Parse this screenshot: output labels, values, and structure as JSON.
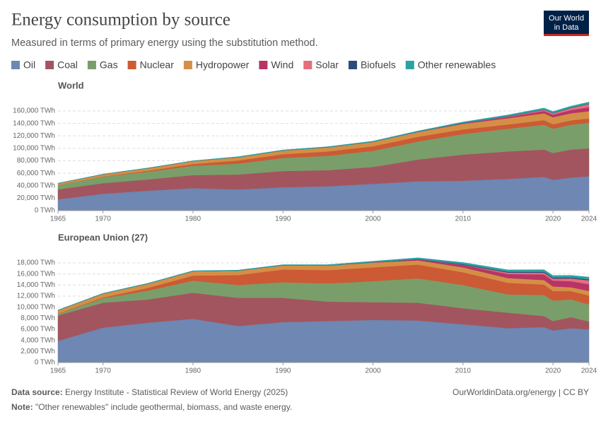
{
  "header": {
    "title": "Energy consumption by source",
    "subtitle": "Measured in terms of primary energy using the substitution method.",
    "logo": [
      "Our World",
      "in Data"
    ]
  },
  "footer": {
    "source_label": "Data source:",
    "source": "Energy Institute - Statistical Review of World Energy (2025)",
    "url": "OurWorldinData.org/energy | CC BY",
    "note_label": "Note:",
    "note": "\"Other renewables\" include geothermal, biomass, and waste energy."
  },
  "chart_data": [
    {
      "type": "stacked-area",
      "title": "World",
      "x": [
        1965,
        1970,
        1975,
        1980,
        1985,
        1990,
        1995,
        2000,
        2005,
        2010,
        2015,
        2019,
        2020,
        2022,
        2024
      ],
      "xlim": [
        1965,
        2024
      ],
      "xticks": [
        1965,
        1970,
        1980,
        1990,
        2000,
        2010,
        2020,
        2024
      ],
      "ylim": [
        0,
        175000
      ],
      "yticks": [
        {
          "value": 0,
          "label": "0 TWh"
        },
        {
          "value": 20000,
          "label": "20,000 TWh"
        },
        {
          "value": 40000,
          "label": "40,000 TWh"
        },
        {
          "value": 60000,
          "label": "60,000 TWh"
        },
        {
          "value": 80000,
          "label": "80,000 TWh"
        },
        {
          "value": 100000,
          "label": "100,000 TWh"
        },
        {
          "value": 120000,
          "label": "120,000 TWh"
        },
        {
          "value": 140000,
          "label": "140,000 TWh"
        },
        {
          "value": 160000,
          "label": "160,000 TWh"
        }
      ],
      "grid": true,
      "series": [
        {
          "name": "Oil",
          "color": "#6e87b3",
          "values": [
            18000,
            27000,
            32000,
            36000,
            34000,
            37500,
            39000,
            43000,
            47000,
            48000,
            51000,
            54000,
            49500,
            53000,
            55000
          ]
        },
        {
          "name": "Coal",
          "color": "#a2555f",
          "values": [
            16000,
            17000,
            18000,
            21000,
            24000,
            26000,
            26000,
            27000,
            35000,
            42000,
            44000,
            44000,
            43000,
            45000,
            45000
          ]
        },
        {
          "name": "Gas",
          "color": "#7a9e6a",
          "values": [
            7000,
            10500,
            12500,
            15000,
            17500,
            21000,
            23000,
            26000,
            29000,
            33000,
            36500,
            40000,
            39000,
            40000,
            41000
          ]
        },
        {
          "name": "Nuclear",
          "color": "#cc5a34",
          "values": [
            100,
            300,
            1500,
            2800,
            5000,
            6100,
            7000,
            7300,
            7600,
            7400,
            6800,
            7300,
            7000,
            6900,
            7100
          ]
        },
        {
          "name": "Hydropower",
          "color": "#d48f46",
          "values": [
            2700,
            3400,
            4100,
            4700,
            5300,
            5800,
            6600,
            7000,
            7600,
            9000,
            10000,
            11000,
            11400,
            11400,
            11600
          ]
        },
        {
          "name": "Wind",
          "color": "#b73467",
          "values": [
            0,
            0,
            0,
            0,
            0,
            10,
            50,
            80,
            270,
            900,
            2200,
            3700,
            4100,
            5200,
            6300
          ]
        },
        {
          "name": "Solar",
          "color": "#e56e7c",
          "values": [
            0,
            0,
            0,
            0,
            0,
            0,
            0,
            3,
            10,
            90,
            700,
            1900,
            2300,
            3300,
            5200
          ]
        },
        {
          "name": "Biofuels",
          "color": "#2c4a7b",
          "values": [
            0,
            0,
            0,
            10,
            30,
            50,
            60,
            60,
            110,
            300,
            400,
            500,
            450,
            500,
            600
          ]
        },
        {
          "name": "Other renewables",
          "color": "#2ba2a0",
          "values": [
            200,
            300,
            400,
            500,
            700,
            900,
            1000,
            1100,
            1300,
            1600,
            2000,
            2300,
            2300,
            2400,
            2500
          ]
        }
      ]
    },
    {
      "type": "stacked-area",
      "title": "European Union (27)",
      "x": [
        1965,
        1970,
        1975,
        1980,
        1985,
        1990,
        1995,
        2000,
        2005,
        2010,
        2015,
        2019,
        2020,
        2022,
        2024
      ],
      "xlim": [
        1965,
        2024
      ],
      "xticks": [
        1965,
        1970,
        1980,
        1990,
        2000,
        2010,
        2020,
        2024
      ],
      "ylim": [
        0,
        19000
      ],
      "yticks": [
        {
          "value": 0,
          "label": "0 TWh"
        },
        {
          "value": 2000,
          "label": "2,000 TWh"
        },
        {
          "value": 4000,
          "label": "4,000 TWh"
        },
        {
          "value": 6000,
          "label": "6,000 TWh"
        },
        {
          "value": 8000,
          "label": "8,000 TWh"
        },
        {
          "value": 10000,
          "label": "10,000 TWh"
        },
        {
          "value": 12000,
          "label": "12,000 TWh"
        },
        {
          "value": 14000,
          "label": "14,000 TWh"
        },
        {
          "value": 16000,
          "label": "16,000 TWh"
        },
        {
          "value": 18000,
          "label": "18,000 TWh"
        }
      ],
      "grid": true,
      "series": [
        {
          "color": "#6e87b3",
          "values": [
            3900,
            6300,
            7200,
            7900,
            6600,
            7300,
            7500,
            7700,
            7600,
            6900,
            6200,
            6400,
            5800,
            6200,
            6000
          ]
        },
        {
          "color": "#a2555f",
          "values": [
            4600,
            4500,
            4200,
            4700,
            5100,
            4400,
            3500,
            3200,
            3200,
            2900,
            2800,
            2000,
            1700,
            2000,
            1400
          ]
        },
        {
          "color": "#7a9e6a",
          "values": [
            300,
            800,
            1600,
            2200,
            2300,
            2800,
            3300,
            3800,
            4400,
            4200,
            3300,
            3800,
            3700,
            3200,
            3100
          ]
        },
        {
          "color": "#cc5a34",
          "values": [
            30,
            150,
            500,
            900,
            1800,
            2300,
            2400,
            2500,
            2500,
            2300,
            2100,
            1900,
            1700,
            1500,
            1600
          ]
        },
        {
          "color": "#d48f46",
          "values": [
            600,
            700,
            750,
            800,
            800,
            750,
            800,
            850,
            750,
            900,
            850,
            800,
            850,
            700,
            850
          ]
        },
        {
          "color": "#b73467",
          "values": [
            0,
            0,
            0,
            0,
            0,
            5,
            30,
            60,
            190,
            400,
            750,
            1000,
            1050,
            1100,
            1200
          ]
        },
        {
          "color": "#e56e7c",
          "values": [
            0,
            0,
            0,
            0,
            0,
            0,
            0,
            0,
            10,
            60,
            250,
            330,
            370,
            500,
            700
          ]
        },
        {
          "color": "#2c4a7b",
          "values": [
            0,
            0,
            0,
            0,
            0,
            5,
            10,
            20,
            50,
            120,
            140,
            160,
            160,
            170,
            180
          ]
        },
        {
          "color": "#2ba2a0",
          "values": [
            50,
            60,
            70,
            80,
            100,
            120,
            140,
            170,
            220,
            300,
            350,
            380,
            380,
            380,
            400
          ]
        }
      ]
    }
  ]
}
